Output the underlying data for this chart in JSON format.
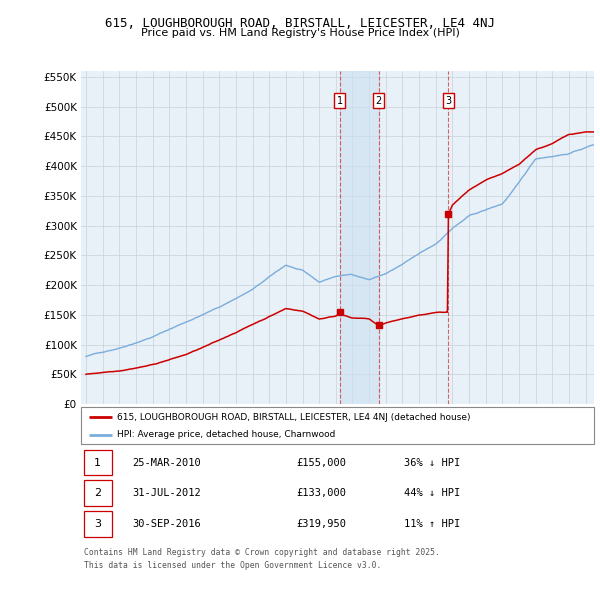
{
  "title": "615, LOUGHBOROUGH ROAD, BIRSTALL, LEICESTER, LE4 4NJ",
  "subtitle": "Price paid vs. HM Land Registry's House Price Index (HPI)",
  "legend_line1": "615, LOUGHBOROUGH ROAD, BIRSTALL, LEICESTER, LE4 4NJ (detached house)",
  "legend_line2": "HPI: Average price, detached house, Charnwood",
  "sales": [
    {
      "num": 1,
      "date_x": 2010.23,
      "price": 155000,
      "label": "25-MAR-2010",
      "pct": "36%",
      "dir": "↓"
    },
    {
      "num": 2,
      "date_x": 2012.58,
      "price": 133000,
      "label": "31-JUL-2012",
      "pct": "44%",
      "dir": "↓"
    },
    {
      "num": 3,
      "date_x": 2016.75,
      "price": 319950,
      "label": "30-SEP-2016",
      "pct": "11%",
      "dir": "↑"
    }
  ],
  "footer_line1": "Contains HM Land Registry data © Crown copyright and database right 2025.",
  "footer_line2": "This data is licensed under the Open Government Licence v3.0.",
  "red_color": "#cc0000",
  "blue_color": "#7aaddb",
  "bg_color": "#e8f0f8",
  "grid_color": "#c8d0d8",
  "span_color": "#cce0f0",
  "ylim": [
    0,
    560000
  ],
  "yticks": [
    0,
    50000,
    100000,
    150000,
    200000,
    250000,
    300000,
    350000,
    400000,
    450000,
    500000,
    550000
  ],
  "xlim_left": 1994.7,
  "xlim_right": 2025.5
}
